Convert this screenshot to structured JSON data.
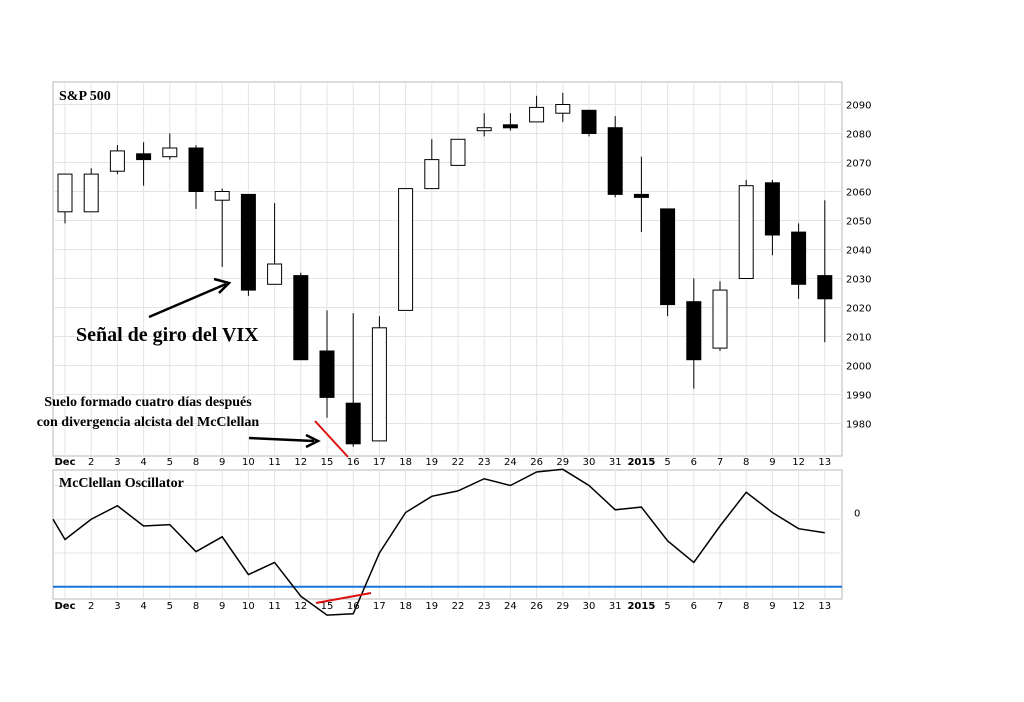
{
  "chart_data": [
    {
      "type": "candlestick",
      "title": "S&P 500",
      "x_tick_labels": [
        "Dec",
        "2",
        "3",
        "4",
        "5",
        "8",
        "9",
        "10",
        "11",
        "12",
        "15",
        "16",
        "17",
        "18",
        "19",
        "22",
        "23",
        "24",
        "26",
        "29",
        "30",
        "31",
        "2015",
        "5",
        "6",
        "7",
        "8",
        "9",
        "12",
        "13"
      ],
      "y_tick_labels": [
        "1980",
        "1990",
        "2000",
        "2010",
        "2020",
        "2030",
        "2040",
        "2050",
        "2060",
        "2070",
        "2080",
        "2090"
      ],
      "ylim": [
        1973,
        2095
      ],
      "grid": true,
      "ohlc": [
        {
          "o": 2053,
          "h": 2066,
          "l": 2049,
          "c": 2066
        },
        {
          "o": 2053,
          "h": 2068,
          "l": 2053,
          "c": 2066
        },
        {
          "o": 2067,
          "h": 2076,
          "l": 2066,
          "c": 2074
        },
        {
          "o": 2073,
          "h": 2077,
          "l": 2062,
          "c": 2071
        },
        {
          "o": 2072,
          "h": 2080,
          "l": 2071,
          "c": 2075
        },
        {
          "o": 2075,
          "h": 2076,
          "l": 2054,
          "c": 2060
        },
        {
          "o": 2057,
          "h": 2061,
          "l": 2034,
          "c": 2060
        },
        {
          "o": 2059,
          "h": 2059,
          "l": 2024,
          "c": 2026
        },
        {
          "o": 2028,
          "h": 2056,
          "l": 2028,
          "c": 2035
        },
        {
          "o": 2031,
          "h": 2032,
          "l": 2002,
          "c": 2002
        },
        {
          "o": 2005,
          "h": 2019,
          "l": 1982,
          "c": 1989
        },
        {
          "o": 1987,
          "h": 2018,
          "l": 1972,
          "c": 1973
        },
        {
          "o": 1974,
          "h": 2017,
          "l": 1974,
          "c": 2013
        },
        {
          "o": 2019,
          "h": 2061,
          "l": 2019,
          "c": 2061
        },
        {
          "o": 2061,
          "h": 2078,
          "l": 2061,
          "c": 2071
        },
        {
          "o": 2069,
          "h": 2078,
          "l": 2069,
          "c": 2078
        },
        {
          "o": 2081,
          "h": 2087,
          "l": 2079,
          "c": 2082
        },
        {
          "o": 2083,
          "h": 2087,
          "l": 2081,
          "c": 2082
        },
        {
          "o": 2084,
          "h": 2093,
          "l": 2084,
          "c": 2089
        },
        {
          "o": 2087,
          "h": 2094,
          "l": 2084,
          "c": 2090
        },
        {
          "o": 2088,
          "h": 2088,
          "l": 2079,
          "c": 2080
        },
        {
          "o": 2082,
          "h": 2086,
          "l": 2058,
          "c": 2059
        },
        {
          "o": 2059,
          "h": 2072,
          "l": 2046,
          "c": 2058
        },
        {
          "o": 2054,
          "h": 2054,
          "l": 2017,
          "c": 2021
        },
        {
          "o": 2022,
          "h": 2030,
          "l": 1992,
          "c": 2002
        },
        {
          "o": 2006,
          "h": 2029,
          "l": 2005,
          "c": 2026
        },
        {
          "o": 2030,
          "h": 2064,
          "l": 2030,
          "c": 2062
        },
        {
          "o": 2063,
          "h": 2064,
          "l": 2038,
          "c": 2045
        },
        {
          "o": 2046,
          "h": 2049,
          "l": 2023,
          "c": 2028
        },
        {
          "o": 2031,
          "h": 2057,
          "l": 2008,
          "c": 2023
        }
      ],
      "up_color": "#ffffff",
      "down_color": "#000000"
    },
    {
      "type": "line",
      "title": "McClellan Oscillator",
      "x_tick_labels": [
        "Dec",
        "2",
        "3",
        "4",
        "5",
        "8",
        "9",
        "10",
        "11",
        "12",
        "15",
        "16",
        "17",
        "18",
        "19",
        "22",
        "23",
        "24",
        "26",
        "29",
        "30",
        "31",
        "2015",
        "5",
        "6",
        "7",
        "8",
        "9",
        "12",
        "13"
      ],
      "y_tick_labels": [
        "0"
      ],
      "ylim": [
        -140,
        60
      ],
      "grid": true,
      "values": [
        -5,
        -20,
        -5,
        5,
        -10,
        -9,
        -29,
        -18,
        -46,
        -37,
        -62,
        -76,
        -75,
        -30,
        0,
        12,
        16,
        25,
        20,
        30,
        32,
        20,
        2,
        4,
        -21,
        -37,
        -10,
        15,
        0,
        -12,
        -15
      ],
      "x_positions": [
        -1,
        0,
        1,
        2,
        3,
        4,
        5,
        6,
        7,
        8,
        9,
        10,
        11,
        12,
        13,
        14,
        15,
        16,
        17,
        18,
        19,
        20,
        21,
        22,
        23,
        24,
        25,
        26,
        27,
        28,
        29
      ],
      "reference_line": {
        "value": -55,
        "color": "#1a73d9"
      },
      "line_color": "#000000"
    }
  ],
  "annotations": {
    "vix_signal": "Señal de giro del VIX",
    "floor_line1": "Suelo formado cuatro días después",
    "floor_line2": "con divergencia alcista del McClellan",
    "divergence_color": "#dd1111"
  }
}
